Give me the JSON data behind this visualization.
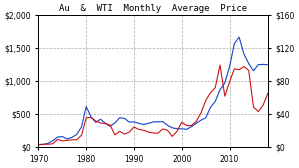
{
  "title": "Au  &  WTI  Monthly  Average  Price",
  "xlim": [
    1970,
    2018
  ],
  "ylim_left": [
    0,
    2000
  ],
  "ylim_right": [
    0,
    160
  ],
  "yticks_left": [
    0,
    500,
    1000,
    1500,
    2000
  ],
  "yticks_right": [
    0,
    40,
    80,
    120,
    160
  ],
  "xticks": [
    1970,
    1980,
    1990,
    2000,
    2010
  ],
  "gold_color": "#1144cc",
  "oil_color": "#cc1111",
  "background": "#ffffff",
  "grid_color": "#aaaaaa",
  "linewidth": 0.8
}
